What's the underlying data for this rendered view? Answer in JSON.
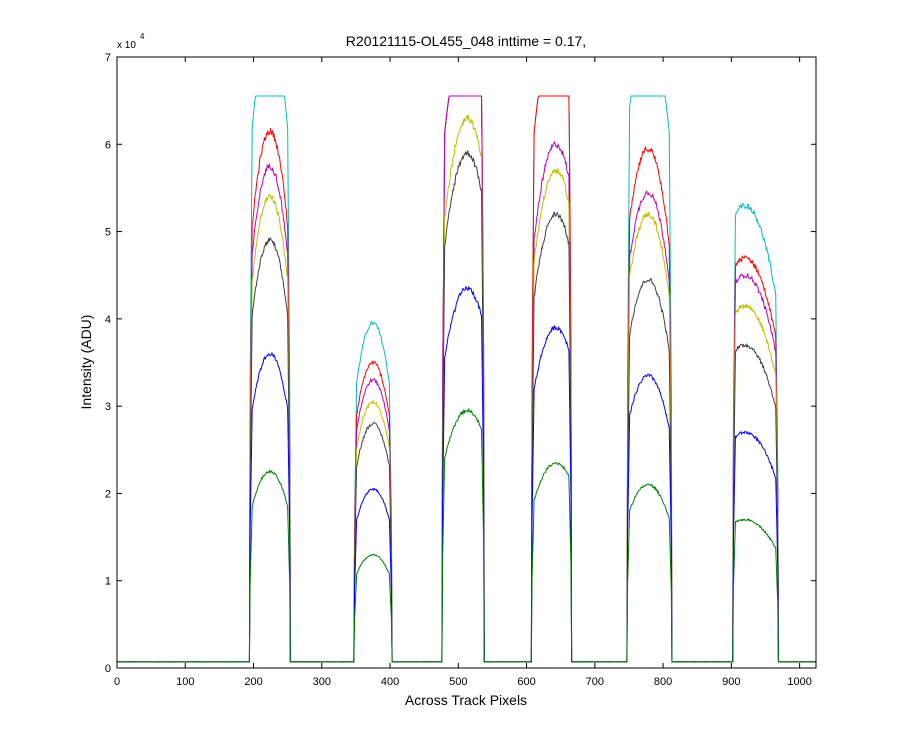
{
  "figure": {
    "background": "#ffffff"
  },
  "chart_data": {
    "type": "line",
    "title": "R20121115-OL455_048 inttime = 0.17,",
    "xlabel": "Across Track Pixels",
    "ylabel": "Intensity (ADU)",
    "y_exponent_label": {
      "base": "x 10",
      "power": "4"
    },
    "xlim": [
      0,
      1024
    ],
    "ylim": [
      0,
      70000
    ],
    "xticks": [
      0,
      100,
      200,
      300,
      400,
      500,
      600,
      700,
      800,
      900,
      1000
    ],
    "xtick_labels": [
      "0",
      "100",
      "200",
      "300",
      "400",
      "500",
      "600",
      "700",
      "800",
      "900",
      "1000"
    ],
    "yticks": [
      0,
      10000,
      20000,
      30000,
      40000,
      50000,
      60000,
      70000
    ],
    "ytick_labels": [
      "0",
      "1",
      "2",
      "3",
      "4",
      "5",
      "6",
      "7"
    ],
    "grid": false,
    "legend": "none",
    "baseline_level": 700,
    "noise_amplitude": 500,
    "saturation_level": 65535,
    "bands": [
      {
        "x_start": 195,
        "x_end": 253,
        "peak_x": 224
      },
      {
        "x_start": 348,
        "x_end": 402,
        "peak_x": 375
      },
      {
        "x_start": 477,
        "x_end": 537,
        "peak_x": 513
      },
      {
        "x_start": 608,
        "x_end": 665,
        "peak_x": 643
      },
      {
        "x_start": 748,
        "x_end": 812,
        "peak_x": 778
      },
      {
        "x_start": 903,
        "x_end": 968,
        "peak_x": 920
      }
    ],
    "series": [
      {
        "color": "#00bfbf",
        "band_peaks": [
          65535,
          39500,
          65535,
          65535,
          65535,
          53000
        ]
      },
      {
        "color": "#ff0000",
        "band_peaks": [
          61500,
          35000,
          65535,
          65535,
          59500,
          47000
        ]
      },
      {
        "color": "#bf00bf",
        "band_peaks": [
          57500,
          33000,
          65535,
          60000,
          54500,
          45000
        ]
      },
      {
        "color": "#bfbf00",
        "band_peaks": [
          54000,
          30500,
          63000,
          57000,
          52000,
          41500
        ]
      },
      {
        "color": "#404040",
        "band_peaks": [
          49000,
          28000,
          59000,
          52000,
          44500,
          37000
        ]
      },
      {
        "color": "#0000ff",
        "band_peaks": [
          36000,
          20500,
          43500,
          39000,
          33500,
          27000
        ]
      },
      {
        "color": "#008000",
        "band_peaks": [
          22500,
          13000,
          29500,
          23500,
          21000,
          17000
        ]
      }
    ]
  }
}
